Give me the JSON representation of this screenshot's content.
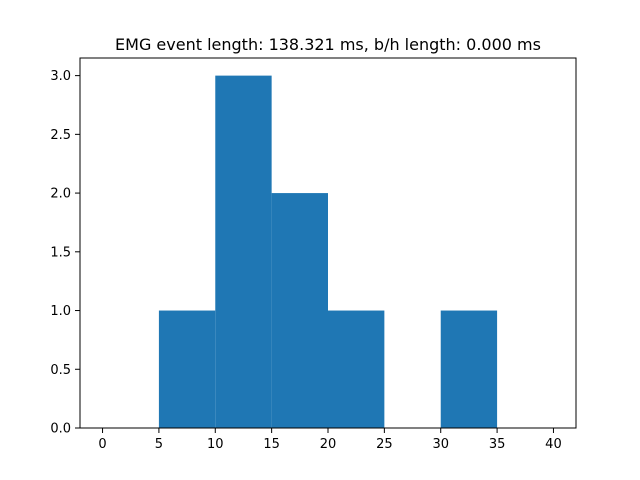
{
  "chart_data": {
    "type": "bar",
    "title": "EMG event length: 138.321 ms, b/h length: 0.000 ms",
    "xlabel": "",
    "ylabel": "",
    "bins": [
      {
        "x0": 5,
        "x1": 10,
        "value": 1
      },
      {
        "x0": 10,
        "x1": 15,
        "value": 3
      },
      {
        "x0": 15,
        "x1": 20,
        "value": 2
      },
      {
        "x0": 20,
        "x1": 25,
        "value": 1
      },
      {
        "x0": 25,
        "x1": 30,
        "value": 0
      },
      {
        "x0": 30,
        "x1": 35,
        "value": 1
      }
    ],
    "xlim": [
      -2,
      42
    ],
    "ylim": [
      0,
      3.15
    ],
    "xticks": [
      0,
      5,
      10,
      15,
      20,
      25,
      30,
      35,
      40
    ],
    "xtick_labels": [
      "0",
      "5",
      "10",
      "15",
      "20",
      "25",
      "30",
      "35",
      "40"
    ],
    "yticks": [
      0.0,
      0.5,
      1.0,
      1.5,
      2.0,
      2.5,
      3.0
    ],
    "ytick_labels": [
      "0.0",
      "0.5",
      "1.0",
      "1.5",
      "2.0",
      "2.5",
      "3.0"
    ],
    "grid": false,
    "colors": {
      "bar": "#1f77b4",
      "axes": "#000000",
      "background": "#ffffff"
    }
  }
}
